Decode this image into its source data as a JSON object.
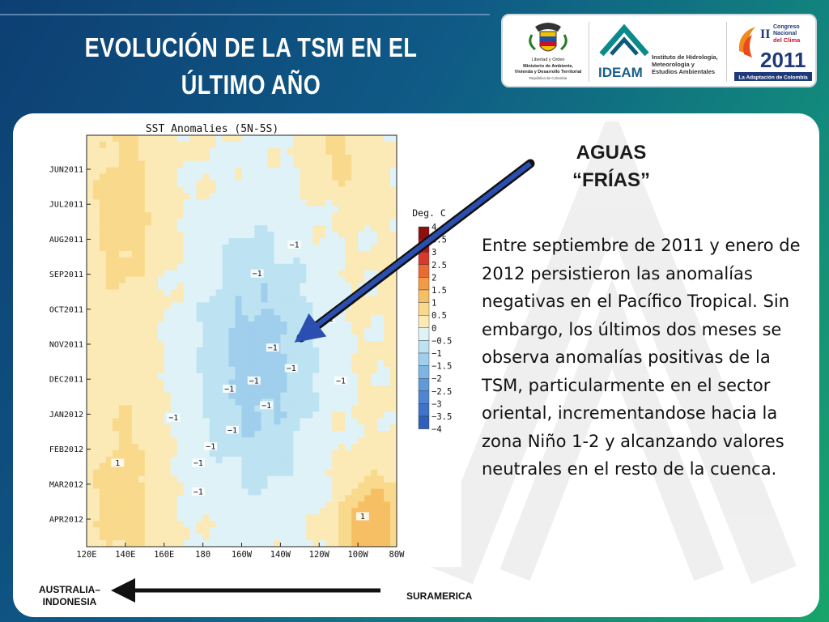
{
  "slide": {
    "title_line1": "EVOLUCIÓN DE LA TSM EN EL",
    "title_line2": "ÚLTIMO AÑO"
  },
  "logos": {
    "ministry": [
      "Libertad y Orden",
      "Ministerio de Ambiente,",
      "Vivienda y Desarrollo Territorial",
      "República de Colombia"
    ],
    "ideam_name": "IDEAM",
    "ideam_full": [
      "Instituto de Hidrología,",
      "Meteorología y",
      "Estudios Ambientales"
    ],
    "congress_top": [
      "II",
      "Congreso",
      "Nacional",
      "del Clima"
    ],
    "congress_year": "2011",
    "congress_tagline": "La Adaptación de Colombia"
  },
  "chart_data": {
    "type": "heatmap",
    "title": "SST Anomalies (5N-5S)",
    "x_ticks": [
      "120E",
      "140E",
      "160E",
      "180",
      "160W",
      "140W",
      "120W",
      "100W",
      "80W"
    ],
    "y_ticks": [
      "JUN2011",
      "JUL2011",
      "AUG2011",
      "SEP2011",
      "OCT2011",
      "NOV2011",
      "DEC2011",
      "JAN2012",
      "FEB2012",
      "MAR2012",
      "APR2012"
    ],
    "legend_title": "Deg. C",
    "legend_ticks": [
      "4",
      "3.5",
      "3",
      "2.5",
      "2",
      "1.5",
      "1",
      "0.5",
      "0",
      "−0.5",
      "−1",
      "−1.5",
      "−2",
      "−2.5",
      "−3",
      "−3.5",
      "−4"
    ],
    "legend_colors": [
      "#8b0f0f",
      "#b5161a",
      "#d8392a",
      "#ea6a33",
      "#f39a45",
      "#f7bf64",
      "#f9d98b",
      "#fbe9b6",
      "#dff2f8",
      "#bde2f2",
      "#9fcfec",
      "#7fb5e3",
      "#6199d9",
      "#4f85d2",
      "#3f72c8",
      "#2f5fb8"
    ],
    "contour_labels": [
      "−1",
      "−1",
      "−1",
      "−1",
      "−1",
      "−1",
      "−1",
      "−1",
      "−1",
      "−1",
      "−1",
      "−1",
      "−1",
      "−1",
      "1",
      "1"
    ]
  },
  "annotation": {
    "heading_line1": "AGUAS",
    "heading_line2": "“FRÍAS”",
    "body": "Entre septiembre de 2011 y enero de 2012 persistieron las anomalías negativas en el Pacífico Tropical. Sin embargo, los últimos dos meses se observa anomalías positivas de la TSM, particularmente en el sector oriental, incrementandose hacia la zona Niño 1-2 y alcanzando valores neutrales en el resto de la cuenca."
  },
  "footer": {
    "left_line1": "AUSTRALIA–",
    "left_line2": "INDONESIA",
    "right": "SURAMERICA"
  },
  "colors": {
    "background_start": "#0d3f73",
    "background_end": "#18a46a",
    "arrow_blue": "#2a4fb0",
    "warm": "#f7bf64",
    "cool": "#9fcfec"
  }
}
